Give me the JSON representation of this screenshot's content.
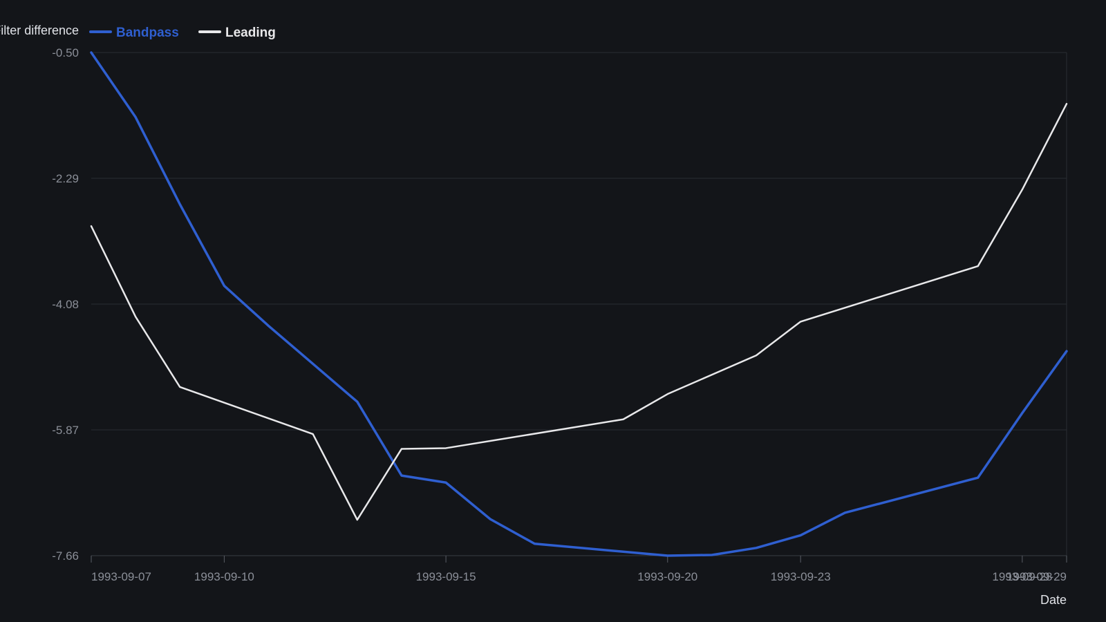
{
  "chart_data": {
    "type": "line",
    "ylabel": "Filter difference",
    "xlabel": "Date",
    "x_type": "date",
    "xlim": [
      "1993-09-07",
      "1993-09-29"
    ],
    "ylim": [
      -7.66,
      -0.5
    ],
    "y_ticks": [
      -0.5,
      -2.29,
      -4.08,
      -5.87,
      -7.66
    ],
    "y_tick_labels": [
      "-0.50",
      "-2.29",
      "-4.08",
      "-5.87",
      "-7.66"
    ],
    "x_ticks": [
      "1993-09-07",
      "1993-09-10",
      "1993-09-15",
      "1993-09-20",
      "1993-09-23",
      "1993-09-28",
      "1993-09-29"
    ],
    "grid": true,
    "legend_position": "top-left",
    "series": [
      {
        "name": "Bandpass",
        "color": "#2f5fd0",
        "points": [
          {
            "x": "1993-09-07",
            "y": -0.5
          },
          {
            "x": "1993-09-08",
            "y": -1.42
          },
          {
            "x": "1993-09-09",
            "y": -2.66
          },
          {
            "x": "1993-09-10",
            "y": -3.82
          },
          {
            "x": "1993-09-11",
            "y": -4.39
          },
          {
            "x": "1993-09-12",
            "y": -4.93
          },
          {
            "x": "1993-09-13",
            "y": -5.47
          },
          {
            "x": "1993-09-14",
            "y": -6.52
          },
          {
            "x": "1993-09-15",
            "y": -6.62
          },
          {
            "x": "1993-09-16",
            "y": -7.14
          },
          {
            "x": "1993-09-17",
            "y": -7.49
          },
          {
            "x": "1993-09-20",
            "y": -7.66
          },
          {
            "x": "1993-09-21",
            "y": -7.65
          },
          {
            "x": "1993-09-22",
            "y": -7.55
          },
          {
            "x": "1993-09-23",
            "y": -7.37
          },
          {
            "x": "1993-09-24",
            "y": -7.05
          },
          {
            "x": "1993-09-27",
            "y": -6.55
          },
          {
            "x": "1993-09-28",
            "y": -5.63
          },
          {
            "x": "1993-09-29",
            "y": -4.75
          }
        ]
      },
      {
        "name": "Leading",
        "color": "#e8e8ea",
        "points": [
          {
            "x": "1993-09-07",
            "y": -2.97
          },
          {
            "x": "1993-09-08",
            "y": -4.26
          },
          {
            "x": "1993-09-09",
            "y": -5.26
          },
          {
            "x": "1993-09-12",
            "y": -5.93
          },
          {
            "x": "1993-09-13",
            "y": -7.15
          },
          {
            "x": "1993-09-14",
            "y": -6.14
          },
          {
            "x": "1993-09-15",
            "y": -6.13
          },
          {
            "x": "1993-09-19",
            "y": -5.72
          },
          {
            "x": "1993-09-20",
            "y": -5.36
          },
          {
            "x": "1993-09-22",
            "y": -4.81
          },
          {
            "x": "1993-09-23",
            "y": -4.33
          },
          {
            "x": "1993-09-27",
            "y": -3.54
          },
          {
            "x": "1993-09-28",
            "y": -2.45
          },
          {
            "x": "1993-09-29",
            "y": -1.23
          }
        ]
      }
    ]
  }
}
